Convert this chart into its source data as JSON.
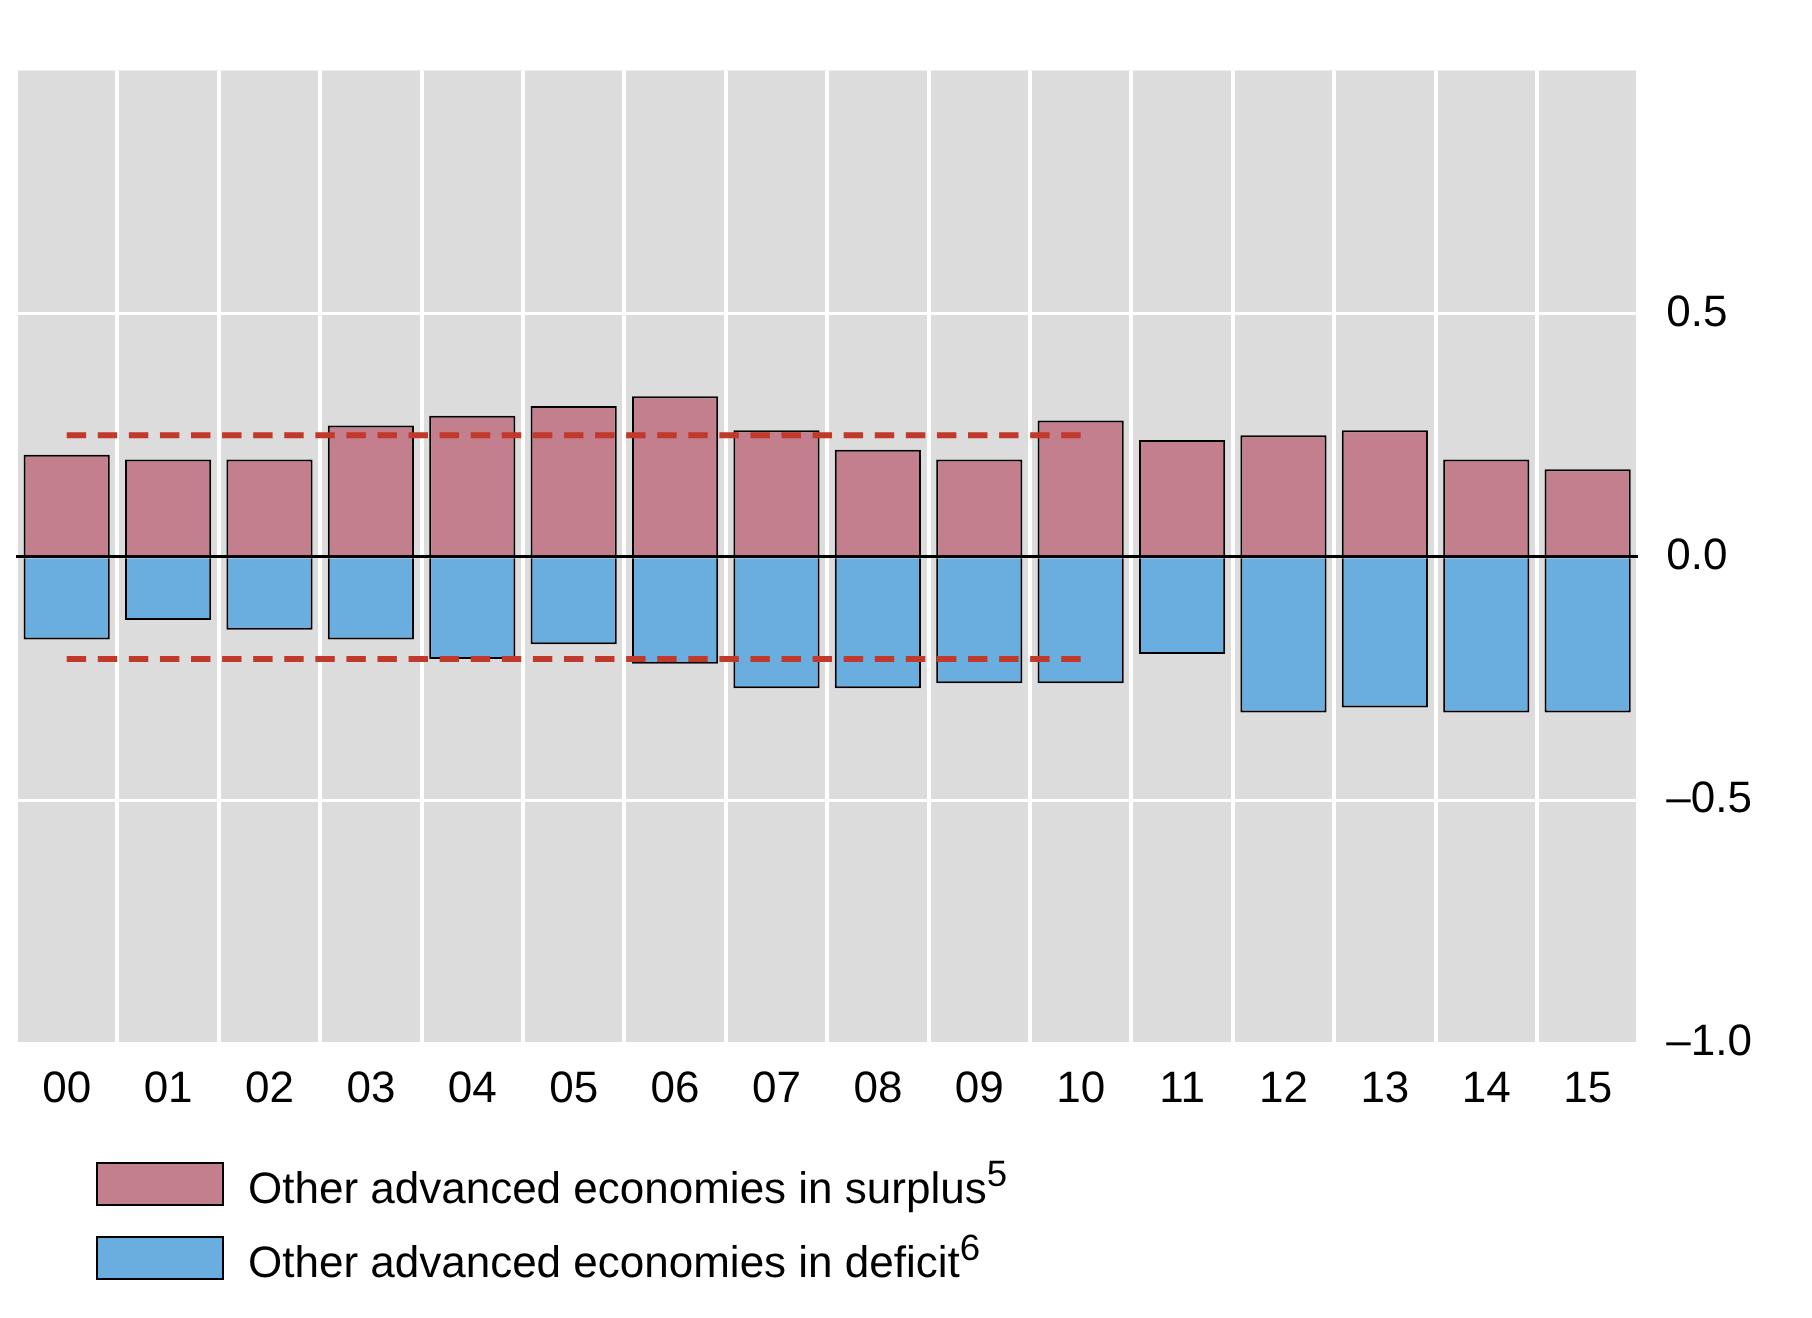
{
  "chart_data": {
    "type": "bar",
    "stacked": true,
    "categories": [
      "00",
      "01",
      "02",
      "03",
      "04",
      "05",
      "06",
      "07",
      "08",
      "09",
      "10",
      "11",
      "12",
      "13",
      "14",
      "15"
    ],
    "series": [
      {
        "name": "Other advanced economies in surplus$^{5}$",
        "color": "#c47f8e",
        "values": [
          0.21,
          0.2,
          0.2,
          0.27,
          0.29,
          0.31,
          0.33,
          0.26,
          0.22,
          0.2,
          0.28,
          0.24,
          0.25,
          0.26,
          0.2,
          0.18
        ]
      },
      {
        "name": "Other advanced economies in deficit$^{6}$",
        "color": "#6aaee0",
        "values": [
          -0.17,
          -0.13,
          -0.15,
          -0.17,
          -0.21,
          -0.18,
          -0.22,
          -0.27,
          -0.27,
          -0.26,
          -0.26,
          -0.2,
          -0.32,
          -0.31,
          -0.32,
          -0.32
        ]
      },
      {
        "type": "line",
        "color": "#c0392b",
        "line_style": "dashed",
        "marker": "none",
        "values": [
          0.25,
          0.25,
          0.25,
          0.25,
          0.25,
          0.25,
          0.25,
          0.25,
          0.25,
          0.25,
          0.25,
          null,
          null,
          null,
          null,
          null
        ]
      },
      {
        "type": "line",
        "color": "#c0392b",
        "line_style": "dashed",
        "marker": "none",
        "values": [
          -0.21,
          -0.21,
          -0.21,
          -0.21,
          -0.21,
          -0.21,
          -0.21,
          -0.21,
          -0.21,
          -0.21,
          -0.21,
          null,
          null,
          null,
          null,
          null
        ]
      }
    ],
    "ylim": [
      -1.0,
      1.0
    ],
    "yticks": [
      0.5,
      {
        "value": 0.0,
        "label": "0.0"
      },
      {
        "value": -0.5,
        "label": "–0.5"
      },
      {
        "value": -1.0,
        "label": "–1.0"
      }
    ],
    "grid": true,
    "legend": "bottom"
  }
}
